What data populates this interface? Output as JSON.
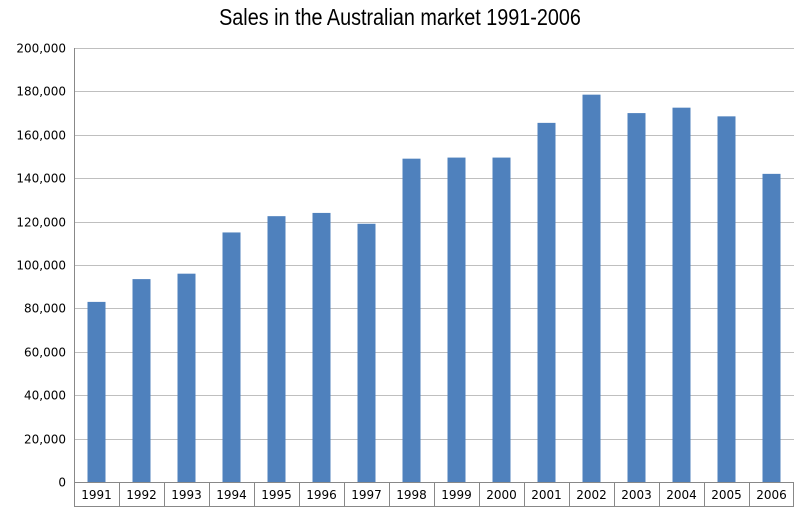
{
  "chart_data": {
    "type": "bar",
    "title": "Sales in the Australian market 1991-2006",
    "xlabel": "",
    "ylabel": "",
    "categories": [
      "1991",
      "1992",
      "1993",
      "1994",
      "1995",
      "1996",
      "1997",
      "1998",
      "1999",
      "2000",
      "2001",
      "2002",
      "2003",
      "2004",
      "2005",
      "2006"
    ],
    "values": [
      83000,
      93500,
      96000,
      115000,
      122500,
      124000,
      119000,
      149000,
      149500,
      149500,
      165500,
      178500,
      170000,
      172500,
      168500,
      142000
    ],
    "ylim": [
      0,
      200000
    ],
    "yticks": [
      0,
      20000,
      40000,
      60000,
      80000,
      100000,
      120000,
      140000,
      160000,
      180000,
      200000
    ],
    "ytick_labels": [
      "0",
      "20,000",
      "40,000",
      "60,000",
      "80,000",
      "100,000",
      "120,000",
      "140,000",
      "160,000",
      "180,000",
      "200,000"
    ],
    "grid": true,
    "legend": "none",
    "colors": {
      "bar": "#4F81BD",
      "grid": "#BFBFBF",
      "axis": "#888888"
    }
  }
}
